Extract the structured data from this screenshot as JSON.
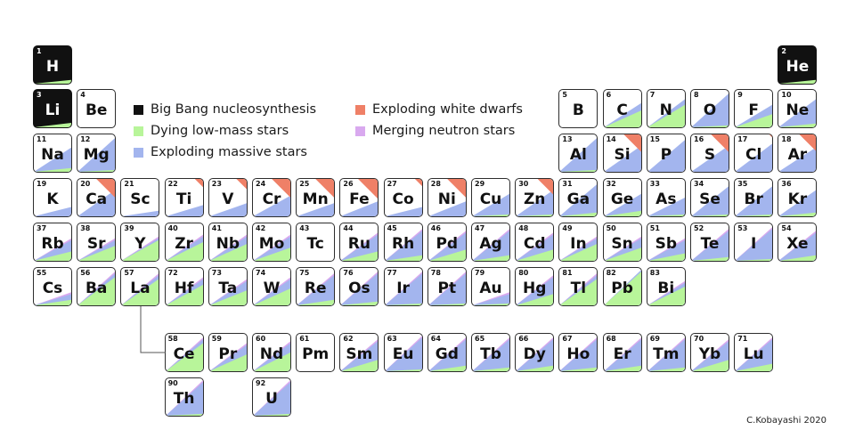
{
  "colors": {
    "bigbang": "#111111",
    "low_mass": "#b8f59a",
    "massive": "#a3b5ee",
    "white_dwarfs": "#ef8067",
    "neutron": "#d9a9ef"
  },
  "legend": [
    {
      "label": "Big Bang nucleosynthesis",
      "color_key": "bigbang"
    },
    {
      "label": "Dying low-mass stars",
      "color_key": "low_mass"
    },
    {
      "label": "Exploding massive stars",
      "color_key": "massive"
    },
    {
      "label": "Exploding white dwarfs",
      "color_key": "white_dwarfs"
    },
    {
      "label": "Merging neutron stars",
      "color_key": "neutron"
    }
  ],
  "credit": "C.Kobayashi 2020",
  "elements": [
    {
      "n": 1,
      "sym": "H",
      "row": 1,
      "col": 1,
      "low": 0.1,
      "mas": 0,
      "wd": 0,
      "ns": 0,
      "dark": true
    },
    {
      "n": 2,
      "sym": "He",
      "row": 1,
      "col": 18,
      "low": 0.1,
      "mas": 0,
      "wd": 0,
      "ns": 0,
      "dark": true
    },
    {
      "n": 3,
      "sym": "Li",
      "row": 2,
      "col": 1,
      "low": 0.12,
      "mas": 0,
      "wd": 0,
      "ns": 0,
      "dark": true
    },
    {
      "n": 4,
      "sym": "Be",
      "row": 2,
      "col": 2,
      "low": 0,
      "mas": 0,
      "wd": 0,
      "ns": 0
    },
    {
      "n": 5,
      "sym": "B",
      "row": 2,
      "col": 13,
      "low": 0,
      "mas": 0,
      "wd": 0,
      "ns": 0
    },
    {
      "n": 6,
      "sym": "C",
      "row": 2,
      "col": 14,
      "low": 0.45,
      "mas": 0.65,
      "wd": 0,
      "ns": 0
    },
    {
      "n": 7,
      "sym": "N",
      "row": 2,
      "col": 15,
      "low": 0.6,
      "mas": 0.75,
      "wd": 0,
      "ns": 0
    },
    {
      "n": 8,
      "sym": "O",
      "row": 2,
      "col": 16,
      "low": 0.05,
      "mas": 0.9,
      "wd": 0,
      "ns": 0
    },
    {
      "n": 9,
      "sym": "F",
      "row": 2,
      "col": 17,
      "low": 0.35,
      "mas": 0.6,
      "wd": 0,
      "ns": 0
    },
    {
      "n": 10,
      "sym": "Ne",
      "row": 2,
      "col": 18,
      "low": 0.1,
      "mas": 0.75,
      "wd": 0,
      "ns": 0
    },
    {
      "n": 11,
      "sym": "Na",
      "row": 3,
      "col": 1,
      "low": 0.1,
      "mas": 0.65,
      "wd": 0,
      "ns": 0
    },
    {
      "n": 12,
      "sym": "Mg",
      "row": 3,
      "col": 2,
      "low": 0.05,
      "mas": 0.9,
      "wd": 0,
      "ns": 0
    },
    {
      "n": 13,
      "sym": "Al",
      "row": 3,
      "col": 13,
      "low": 0.05,
      "mas": 0.9,
      "wd": 0,
      "ns": 0
    },
    {
      "n": 14,
      "sym": "Si",
      "row": 3,
      "col": 14,
      "low": 0,
      "mas": 0.7,
      "wd": 0.85,
      "ns": 0
    },
    {
      "n": 15,
      "sym": "P",
      "row": 3,
      "col": 15,
      "low": 0,
      "mas": 0.85,
      "wd": 0,
      "ns": 0
    },
    {
      "n": 16,
      "sym": "S",
      "row": 3,
      "col": 16,
      "low": 0,
      "mas": 0.7,
      "wd": 0.85,
      "ns": 0
    },
    {
      "n": 17,
      "sym": "Cl",
      "row": 3,
      "col": 17,
      "low": 0,
      "mas": 0.75,
      "wd": 0.15,
      "ns": 0
    },
    {
      "n": 18,
      "sym": "Ar",
      "row": 3,
      "col": 18,
      "low": 0,
      "mas": 0.65,
      "wd": 0.8,
      "ns": 0
    },
    {
      "n": 19,
      "sym": "K",
      "row": 4,
      "col": 1,
      "low": 0,
      "mas": 0.25,
      "wd": 0,
      "ns": 0
    },
    {
      "n": 20,
      "sym": "Ca",
      "row": 4,
      "col": 2,
      "low": 0,
      "mas": 0.7,
      "wd": 0.9,
      "ns": 0
    },
    {
      "n": 21,
      "sym": "Sc",
      "row": 4,
      "col": 3,
      "low": 0,
      "mas": 0.15,
      "wd": 0,
      "ns": 0
    },
    {
      "n": 22,
      "sym": "Ti",
      "row": 4,
      "col": 4,
      "low": 0,
      "mas": 0.3,
      "wd": 0.4,
      "ns": 0
    },
    {
      "n": 23,
      "sym": "V",
      "row": 4,
      "col": 5,
      "low": 0,
      "mas": 0.35,
      "wd": 0.5,
      "ns": 0
    },
    {
      "n": 24,
      "sym": "Cr",
      "row": 4,
      "col": 6,
      "low": 0,
      "mas": 0.55,
      "wd": 0.9,
      "ns": 0
    },
    {
      "n": 25,
      "sym": "Mn",
      "row": 4,
      "col": 7,
      "low": 0,
      "mas": 0.35,
      "wd": 0.9,
      "ns": 0
    },
    {
      "n": 26,
      "sym": "Fe",
      "row": 4,
      "col": 8,
      "low": 0,
      "mas": 0.4,
      "wd": 0.95,
      "ns": 0
    },
    {
      "n": 27,
      "sym": "Co",
      "row": 4,
      "col": 9,
      "low": 0,
      "mas": 0.25,
      "wd": 0.35,
      "ns": 0
    },
    {
      "n": 28,
      "sym": "Ni",
      "row": 4,
      "col": 10,
      "low": 0,
      "mas": 0.4,
      "wd": 0.9,
      "ns": 0
    },
    {
      "n": 29,
      "sym": "Cu",
      "row": 4,
      "col": 11,
      "low": 0.05,
      "mas": 0.6,
      "wd": 0,
      "ns": 0
    },
    {
      "n": 30,
      "sym": "Zn",
      "row": 4,
      "col": 12,
      "low": 0.05,
      "mas": 0.7,
      "wd": 0.75,
      "ns": 0
    },
    {
      "n": 31,
      "sym": "Ga",
      "row": 4,
      "col": 13,
      "low": 0.1,
      "mas": 0.85,
      "wd": 0,
      "ns": 0
    },
    {
      "n": 32,
      "sym": "Ge",
      "row": 4,
      "col": 14,
      "low": 0.15,
      "mas": 0.6,
      "wd": 0,
      "ns": 0
    },
    {
      "n": 33,
      "sym": "As",
      "row": 4,
      "col": 15,
      "low": 0.05,
      "mas": 0.5,
      "wd": 0,
      "ns": 0
    },
    {
      "n": 34,
      "sym": "Se",
      "row": 4,
      "col": 16,
      "low": 0.05,
      "mas": 0.8,
      "wd": 0,
      "ns": 0
    },
    {
      "n": 35,
      "sym": "Br",
      "row": 4,
      "col": 17,
      "low": 0.05,
      "mas": 0.8,
      "wd": 0,
      "ns": 0
    },
    {
      "n": 36,
      "sym": "Kr",
      "row": 4,
      "col": 18,
      "low": 0.1,
      "mas": 0.7,
      "wd": 0,
      "ns": 0
    },
    {
      "n": 37,
      "sym": "Rb",
      "row": 5,
      "col": 1,
      "low": 0.25,
      "mas": 0.55,
      "wd": 0,
      "ns": 0.6
    },
    {
      "n": 38,
      "sym": "Sr",
      "row": 5,
      "col": 2,
      "low": 0.4,
      "mas": 0.55,
      "wd": 0,
      "ns": 0.6
    },
    {
      "n": 39,
      "sym": "Y",
      "row": 5,
      "col": 3,
      "low": 0.55,
      "mas": 0.6,
      "wd": 0,
      "ns": 0.65
    },
    {
      "n": 40,
      "sym": "Zr",
      "row": 5,
      "col": 4,
      "low": 0.5,
      "mas": 0.65,
      "wd": 0,
      "ns": 0.7
    },
    {
      "n": 41,
      "sym": "Nb",
      "row": 5,
      "col": 5,
      "low": 0.45,
      "mas": 0.65,
      "wd": 0,
      "ns": 0.7
    },
    {
      "n": 42,
      "sym": "Mo",
      "row": 5,
      "col": 6,
      "low": 0.35,
      "mas": 0.65,
      "wd": 0,
      "ns": 0.7
    },
    {
      "n": 43,
      "sym": "Tc",
      "row": 5,
      "col": 7,
      "low": 0,
      "mas": 0,
      "wd": 0,
      "ns": 0
    },
    {
      "n": 44,
      "sym": "Ru",
      "row": 5,
      "col": 8,
      "low": 0.25,
      "mas": 0.7,
      "wd": 0,
      "ns": 0.75
    },
    {
      "n": 45,
      "sym": "Rh",
      "row": 5,
      "col": 9,
      "low": 0.15,
      "mas": 0.8,
      "wd": 0,
      "ns": 0.85
    },
    {
      "n": 46,
      "sym": "Pd",
      "row": 5,
      "col": 10,
      "low": 0.3,
      "mas": 0.75,
      "wd": 0,
      "ns": 0.8
    },
    {
      "n": 47,
      "sym": "Ag",
      "row": 5,
      "col": 11,
      "low": 0.15,
      "mas": 0.8,
      "wd": 0,
      "ns": 0.85
    },
    {
      "n": 48,
      "sym": "Cd",
      "row": 5,
      "col": 12,
      "low": 0.3,
      "mas": 0.7,
      "wd": 0,
      "ns": 0.75
    },
    {
      "n": 49,
      "sym": "In",
      "row": 5,
      "col": 13,
      "low": 0.45,
      "mas": 0.6,
      "wd": 0,
      "ns": 0.65
    },
    {
      "n": 50,
      "sym": "Sn",
      "row": 5,
      "col": 14,
      "low": 0.35,
      "mas": 0.6,
      "wd": 0,
      "ns": 0.65
    },
    {
      "n": 51,
      "sym": "Sb",
      "row": 5,
      "col": 15,
      "low": 0.2,
      "mas": 0.55,
      "wd": 0,
      "ns": 0.6
    },
    {
      "n": 52,
      "sym": "Te",
      "row": 5,
      "col": 16,
      "low": 0.1,
      "mas": 0.8,
      "wd": 0,
      "ns": 0.85
    },
    {
      "n": 53,
      "sym": "I",
      "row": 5,
      "col": 17,
      "low": 0.05,
      "mas": 0.85,
      "wd": 0,
      "ns": 0.9
    },
    {
      "n": 54,
      "sym": "Xe",
      "row": 5,
      "col": 18,
      "low": 0.15,
      "mas": 0.75,
      "wd": 0,
      "ns": 0.8
    },
    {
      "n": 55,
      "sym": "Cs",
      "row": 6,
      "col": 1,
      "low": 0.15,
      "mas": 0.3,
      "wd": 0,
      "ns": 0.35
    },
    {
      "n": 56,
      "sym": "Ba",
      "row": 6,
      "col": 2,
      "low": 0.75,
      "mas": 0.85,
      "wd": 0,
      "ns": 0.9
    },
    {
      "n": 57,
      "sym": "La",
      "row": 6,
      "col": 3,
      "low": 0.7,
      "mas": 0.8,
      "wd": 0,
      "ns": 0.85
    },
    {
      "n": 72,
      "sym": "Hf",
      "row": 6,
      "col": 4,
      "low": 0.55,
      "mas": 0.7,
      "wd": 0,
      "ns": 0.75
    },
    {
      "n": 73,
      "sym": "Ta",
      "row": 6,
      "col": 5,
      "low": 0.4,
      "mas": 0.65,
      "wd": 0,
      "ns": 0.7
    },
    {
      "n": 74,
      "sym": "W",
      "row": 6,
      "col": 6,
      "low": 0.45,
      "mas": 0.7,
      "wd": 0,
      "ns": 0.75
    },
    {
      "n": 75,
      "sym": "Re",
      "row": 6,
      "col": 7,
      "low": 0.15,
      "mas": 0.8,
      "wd": 0,
      "ns": 0.85
    },
    {
      "n": 76,
      "sym": "Os",
      "row": 6,
      "col": 8,
      "low": 0.1,
      "mas": 0.85,
      "wd": 0,
      "ns": 0.9
    },
    {
      "n": 77,
      "sym": "Ir",
      "row": 6,
      "col": 9,
      "low": 0.05,
      "mas": 0.85,
      "wd": 0,
      "ns": 0.9
    },
    {
      "n": 78,
      "sym": "Pt",
      "row": 6,
      "col": 10,
      "low": 0.05,
      "mas": 0.85,
      "wd": 0,
      "ns": 0.9
    },
    {
      "n": 79,
      "sym": "Au",
      "row": 6,
      "col": 11,
      "low": 0.05,
      "mas": 0.3,
      "wd": 0,
      "ns": 0.35
    },
    {
      "n": 80,
      "sym": "Hg",
      "row": 6,
      "col": 12,
      "low": 0.3,
      "mas": 0.75,
      "wd": 0,
      "ns": 0.8
    },
    {
      "n": 81,
      "sym": "Tl",
      "row": 6,
      "col": 13,
      "low": 0.7,
      "mas": 0.8,
      "wd": 0,
      "ns": 0.85
    },
    {
      "n": 82,
      "sym": "Pb",
      "row": 6,
      "col": 14,
      "low": 0.9,
      "mas": 0.95,
      "wd": 0,
      "ns": 0
    },
    {
      "n": 83,
      "sym": "Bi",
      "row": 6,
      "col": 15,
      "low": 0.5,
      "mas": 0.6,
      "wd": 0,
      "ns": 0.65
    },
    {
      "n": 58,
      "sym": "Ce",
      "row": 8,
      "col": 4,
      "low": 0.75,
      "mas": 0.85,
      "wd": 0,
      "ns": 0.9
    },
    {
      "n": 59,
      "sym": "Pr",
      "row": 8,
      "col": 5,
      "low": 0.45,
      "mas": 0.7,
      "wd": 0,
      "ns": 0.75
    },
    {
      "n": 60,
      "sym": "Nd",
      "row": 8,
      "col": 6,
      "low": 0.5,
      "mas": 0.75,
      "wd": 0,
      "ns": 0.8
    },
    {
      "n": 61,
      "sym": "Pm",
      "row": 8,
      "col": 7,
      "low": 0,
      "mas": 0,
      "wd": 0,
      "ns": 0
    },
    {
      "n": 62,
      "sym": "Sm",
      "row": 8,
      "col": 8,
      "low": 0.3,
      "mas": 0.8,
      "wd": 0,
      "ns": 0.85
    },
    {
      "n": 63,
      "sym": "Eu",
      "row": 8,
      "col": 9,
      "low": 0.05,
      "mas": 0.9,
      "wd": 0,
      "ns": 0.95
    },
    {
      "n": 64,
      "sym": "Gd",
      "row": 8,
      "col": 10,
      "low": 0.15,
      "mas": 0.85,
      "wd": 0,
      "ns": 0.9
    },
    {
      "n": 65,
      "sym": "Tb",
      "row": 8,
      "col": 11,
      "low": 0.1,
      "mas": 0.85,
      "wd": 0,
      "ns": 0.9
    },
    {
      "n": 66,
      "sym": "Dy",
      "row": 8,
      "col": 12,
      "low": 0.15,
      "mas": 0.85,
      "wd": 0,
      "ns": 0.9
    },
    {
      "n": 67,
      "sym": "Ho",
      "row": 8,
      "col": 13,
      "low": 0.1,
      "mas": 0.85,
      "wd": 0,
      "ns": 0.9
    },
    {
      "n": 68,
      "sym": "Er",
      "row": 8,
      "col": 14,
      "low": 0.15,
      "mas": 0.85,
      "wd": 0,
      "ns": 0.9
    },
    {
      "n": 69,
      "sym": "Tm",
      "row": 8,
      "col": 15,
      "low": 0.1,
      "mas": 0.85,
      "wd": 0,
      "ns": 0.9
    },
    {
      "n": 70,
      "sym": "Yb",
      "row": 8,
      "col": 16,
      "low": 0.3,
      "mas": 0.8,
      "wd": 0,
      "ns": 0.85
    },
    {
      "n": 71,
      "sym": "Lu",
      "row": 8,
      "col": 17,
      "low": 0.2,
      "mas": 0.85,
      "wd": 0,
      "ns": 0.9
    },
    {
      "n": 90,
      "sym": "Th",
      "row": 9,
      "col": 4,
      "low": 0.05,
      "mas": 0.9,
      "wd": 0,
      "ns": 0.95
    },
    {
      "n": 92,
      "sym": "U",
      "row": 9,
      "col": 6,
      "low": 0.05,
      "mas": 0.9,
      "wd": 0,
      "ns": 0.95
    }
  ]
}
